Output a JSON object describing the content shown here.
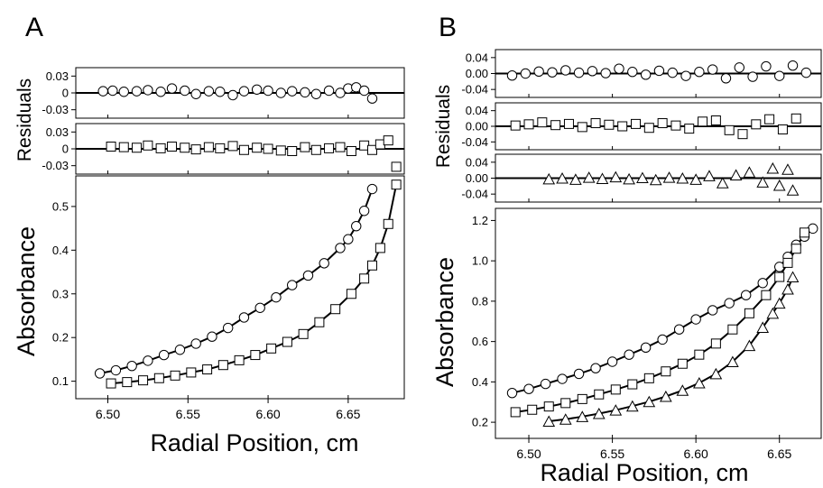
{
  "figure": {
    "panel_letters": [
      "A",
      "B"
    ]
  },
  "chart_data": [
    {
      "panel": "A",
      "type": "scatter",
      "xlabel": "Radial Position, cm",
      "x_ticks": [
        "6.50",
        "6.55",
        "6.60",
        "6.65"
      ],
      "xlim": [
        6.48,
        6.685
      ],
      "residuals_label": "Residuals",
      "subplots": [
        {
          "role": "residuals",
          "ylim": [
            -0.045,
            0.045
          ],
          "y_ticks": [
            0.03,
            0,
            -0.03
          ],
          "y_tick_labels": [
            "0.03",
            "0",
            "-0.03"
          ],
          "zero_line": true,
          "series": [
            {
              "marker": "circle",
              "x": [
                6.497,
                6.503,
                6.51,
                6.518,
                6.525,
                6.533,
                6.54,
                6.548,
                6.555,
                6.563,
                6.57,
                6.578,
                6.585,
                6.593,
                6.6,
                6.608,
                6.615,
                6.623,
                6.63,
                6.638,
                6.645,
                6.65,
                6.655,
                6.66,
                6.665
              ],
              "y": [
                0.003,
                0.004,
                0.002,
                0.003,
                0.005,
                0.002,
                0.008,
                0.004,
                -0.002,
                0.003,
                0.002,
                -0.004,
                0.003,
                0.006,
                0.004,
                0.0,
                0.003,
                0.001,
                -0.002,
                0.004,
                0.0,
                0.008,
                0.01,
                0.004,
                -0.01
              ]
            }
          ]
        },
        {
          "role": "residuals",
          "ylim": [
            -0.045,
            0.045
          ],
          "y_ticks": [
            0.03,
            0,
            -0.03
          ],
          "y_tick_labels": [
            "0.03",
            "0",
            "-0.03"
          ],
          "zero_line": true,
          "series": [
            {
              "marker": "square",
              "x": [
                6.502,
                6.51,
                6.518,
                6.525,
                6.533,
                6.54,
                6.548,
                6.555,
                6.563,
                6.57,
                6.578,
                6.585,
                6.593,
                6.6,
                6.608,
                6.615,
                6.623,
                6.63,
                6.638,
                6.645,
                6.652,
                6.66,
                6.665,
                6.67,
                6.675,
                6.68
              ],
              "y": [
                0.004,
                0.003,
                0.002,
                0.006,
                0.001,
                0.004,
                0.002,
                -0.001,
                0.003,
                0.001,
                0.005,
                -0.002,
                0.002,
                0.0,
                -0.003,
                -0.004,
                0.003,
                -0.002,
                0.001,
                0.003,
                -0.004,
                0.006,
                -0.002,
                0.008,
                0.015,
                -0.032
              ]
            }
          ]
        },
        {
          "role": "data",
          "ylabel": "Absorbance",
          "ylim": [
            0.06,
            0.57
          ],
          "y_ticks": [
            0.1,
            0.2,
            0.3,
            0.4,
            0.5
          ],
          "y_tick_labels": [
            "0.1",
            "0.2",
            "0.3",
            "0.4",
            "0.5"
          ],
          "series": [
            {
              "marker": "circle",
              "x": [
                6.495,
                6.505,
                6.515,
                6.525,
                6.535,
                6.545,
                6.555,
                6.565,
                6.575,
                6.585,
                6.595,
                6.605,
                6.615,
                6.625,
                6.635,
                6.645,
                6.65,
                6.655,
                6.66,
                6.665
              ],
              "y": [
                0.118,
                0.125,
                0.135,
                0.147,
                0.16,
                0.172,
                0.186,
                0.202,
                0.222,
                0.246,
                0.268,
                0.292,
                0.32,
                0.342,
                0.37,
                0.405,
                0.425,
                0.455,
                0.49,
                0.54
              ]
            },
            {
              "marker": "square",
              "x": [
                6.502,
                6.512,
                6.522,
                6.532,
                6.542,
                6.552,
                6.562,
                6.572,
                6.582,
                6.592,
                6.602,
                6.612,
                6.622,
                6.632,
                6.642,
                6.652,
                6.66,
                6.665,
                6.67,
                6.675,
                6.68
              ],
              "y": [
                0.095,
                0.098,
                0.102,
                0.107,
                0.113,
                0.12,
                0.127,
                0.137,
                0.148,
                0.16,
                0.175,
                0.19,
                0.208,
                0.235,
                0.265,
                0.3,
                0.335,
                0.365,
                0.405,
                0.46,
                0.55
              ]
            }
          ]
        }
      ]
    },
    {
      "panel": "B",
      "type": "scatter",
      "xlabel": "Radial Position, cm",
      "x_ticks": [
        "6.50",
        "6.55",
        "6.60",
        "6.65"
      ],
      "xlim": [
        6.48,
        6.675
      ],
      "residuals_label": "Residuals",
      "subplots": [
        {
          "role": "residuals",
          "ylim": [
            -0.06,
            0.06
          ],
          "y_ticks": [
            0.04,
            0,
            -0.04
          ],
          "y_tick_labels": [
            "0.04",
            "0.00",
            "-0.04"
          ],
          "zero_line": true,
          "series": [
            {
              "marker": "circle",
              "x": [
                6.49,
                6.498,
                6.506,
                6.514,
                6.522,
                6.53,
                6.538,
                6.546,
                6.554,
                6.562,
                6.57,
                6.578,
                6.586,
                6.594,
                6.602,
                6.61,
                6.618,
                6.626,
                6.634,
                6.642,
                6.65,
                6.658,
                6.666
              ],
              "y": [
                -0.005,
                0.0,
                0.005,
                0.003,
                0.008,
                0.002,
                0.006,
                0.001,
                0.012,
                0.004,
                -0.003,
                0.007,
                0.002,
                -0.006,
                0.004,
                0.01,
                -0.012,
                0.015,
                -0.008,
                0.018,
                -0.006,
                0.02,
                0.002
              ]
            }
          ]
        },
        {
          "role": "residuals",
          "ylim": [
            -0.06,
            0.06
          ],
          "y_ticks": [
            0.04,
            0,
            -0.04
          ],
          "y_tick_labels": [
            "0.04",
            "0.00",
            "-0.04"
          ],
          "zero_line": true,
          "series": [
            {
              "marker": "square",
              "x": [
                6.492,
                6.5,
                6.508,
                6.516,
                6.524,
                6.532,
                6.54,
                6.548,
                6.556,
                6.564,
                6.572,
                6.58,
                6.588,
                6.596,
                6.604,
                6.612,
                6.62,
                6.628,
                6.636,
                6.644,
                6.652,
                6.66
              ],
              "y": [
                0.002,
                0.005,
                0.01,
                0.003,
                0.006,
                -0.002,
                0.008,
                0.004,
                0.0,
                0.006,
                -0.004,
                0.008,
                0.002,
                -0.006,
                0.012,
                0.015,
                -0.01,
                -0.02,
                0.005,
                0.018,
                -0.008,
                0.02
              ]
            }
          ]
        },
        {
          "role": "residuals",
          "ylim": [
            -0.06,
            0.06
          ],
          "y_ticks": [
            0.04,
            0,
            -0.04
          ],
          "y_tick_labels": [
            "0.04",
            "0.00",
            "-0.04"
          ],
          "zero_line": true,
          "series": [
            {
              "marker": "triangle",
              "x": [
                6.512,
                6.52,
                6.528,
                6.536,
                6.544,
                6.552,
                6.56,
                6.568,
                6.576,
                6.584,
                6.592,
                6.6,
                6.608,
                6.616,
                6.624,
                6.632,
                6.64,
                6.646,
                6.65,
                6.655,
                6.658
              ],
              "y": [
                -0.002,
                0.0,
                -0.003,
                0.002,
                -0.001,
                0.003,
                -0.002,
                0.001,
                -0.004,
                0.002,
                0.0,
                -0.003,
                0.006,
                -0.012,
                0.008,
                0.015,
                -0.01,
                0.025,
                -0.018,
                0.022,
                -0.03
              ]
            }
          ]
        },
        {
          "role": "data",
          "ylabel": "Absorbance",
          "ylim": [
            0.12,
            1.26
          ],
          "y_ticks": [
            0.2,
            0.4,
            0.6,
            0.8,
            1.0,
            1.2
          ],
          "y_tick_labels": [
            "0.2",
            "0.4",
            "0.6",
            "0.8",
            "1.0",
            "1.2"
          ],
          "series": [
            {
              "marker": "circle",
              "x": [
                6.49,
                6.5,
                6.51,
                6.52,
                6.53,
                6.54,
                6.55,
                6.56,
                6.57,
                6.58,
                6.59,
                6.6,
                6.61,
                6.62,
                6.63,
                6.64,
                6.65,
                6.655,
                6.66,
                6.665,
                6.67
              ],
              "y": [
                0.345,
                0.365,
                0.39,
                0.415,
                0.44,
                0.468,
                0.5,
                0.535,
                0.57,
                0.61,
                0.66,
                0.71,
                0.755,
                0.79,
                0.83,
                0.89,
                0.97,
                1.02,
                1.08,
                1.12,
                1.16
              ]
            },
            {
              "marker": "square",
              "x": [
                6.492,
                6.502,
                6.512,
                6.522,
                6.532,
                6.542,
                6.552,
                6.562,
                6.572,
                6.582,
                6.592,
                6.602,
                6.612,
                6.622,
                6.632,
                6.642,
                6.65,
                6.655,
                6.66,
                6.665
              ],
              "y": [
                0.25,
                0.262,
                0.278,
                0.295,
                0.315,
                0.338,
                0.362,
                0.388,
                0.418,
                0.452,
                0.49,
                0.535,
                0.59,
                0.66,
                0.74,
                0.83,
                0.92,
                0.99,
                1.06,
                1.14
              ]
            },
            {
              "marker": "triangle",
              "x": [
                6.512,
                6.522,
                6.532,
                6.542,
                6.552,
                6.562,
                6.572,
                6.582,
                6.592,
                6.602,
                6.612,
                6.622,
                6.632,
                6.64,
                6.646,
                6.65,
                6.655,
                6.658
              ],
              "y": [
                0.205,
                0.215,
                0.228,
                0.243,
                0.26,
                0.28,
                0.302,
                0.328,
                0.358,
                0.395,
                0.44,
                0.5,
                0.58,
                0.67,
                0.74,
                0.79,
                0.86,
                0.92
              ]
            }
          ]
        }
      ]
    }
  ]
}
